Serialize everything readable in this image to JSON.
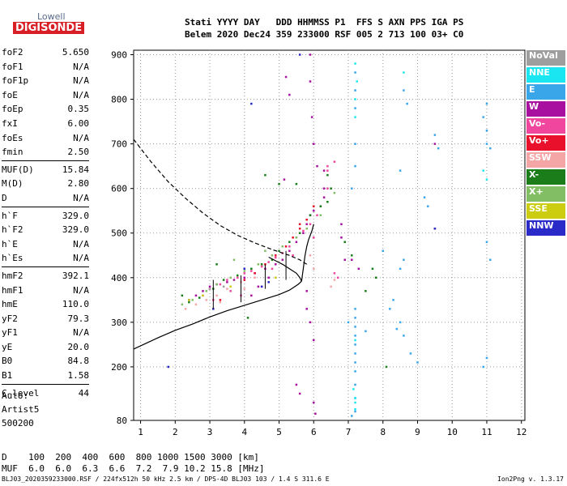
{
  "logo": {
    "top": "Lowell",
    "bottom": "DIGISONDE"
  },
  "header": {
    "line1": "Stati YYYY DAY   DDD HHMMSS P1  FFS S AXN PPS IGA PS",
    "line2": "Belem 2020 Dec24 359 233000 RSF 005 2 713 100 03+ C0"
  },
  "params": [
    {
      "name": "foF2",
      "value": "5.650"
    },
    {
      "name": "foF1",
      "value": "N/A"
    },
    {
      "name": "foF1p",
      "value": "N/A"
    },
    {
      "name": "foE",
      "value": "N/A"
    },
    {
      "name": "foEp",
      "value": "0.35"
    },
    {
      "name": "fxI",
      "value": "6.00"
    },
    {
      "name": "foEs",
      "value": "N/A"
    },
    {
      "name": "fmin",
      "value": "2.50"
    },
    {
      "sep": true
    },
    {
      "name": "MUF(D)",
      "value": "15.84"
    },
    {
      "name": "M(D)",
      "value": "2.80"
    },
    {
      "name": "D",
      "value": "N/A"
    },
    {
      "sep": true
    },
    {
      "name": "h`F",
      "value": "329.0"
    },
    {
      "name": "h`F2",
      "value": "329.0"
    },
    {
      "name": "h`E",
      "value": "N/A"
    },
    {
      "name": "h`Es",
      "value": "N/A"
    },
    {
      "sep": true
    },
    {
      "name": "hmF2",
      "value": "392.1"
    },
    {
      "name": "hmF1",
      "value": "N/A"
    },
    {
      "name": "hmE",
      "value": "110.0"
    },
    {
      "name": "yF2",
      "value": "79.3"
    },
    {
      "name": "yF1",
      "value": "N/A"
    },
    {
      "name": "yE",
      "value": "20.0"
    },
    {
      "name": "B0",
      "value": "84.8"
    },
    {
      "name": "B1",
      "value": "1.58"
    },
    {
      "sep": true
    },
    {
      "name": "C-level",
      "value": "44"
    }
  ],
  "auto": {
    "line1": "Auto:",
    "line2": "Artist5",
    "line3": "500200"
  },
  "bottom": {
    "d_line": "D    100  200  400  600  800 1000 1500 3000 [km]",
    "muf_line": "MUF  6.0  6.0  6.3  6.6  7.2  7.9 10.2 15.8 [MHz]"
  },
  "footer": "BLJ03_2020359233000.RSF / 224fx512h 50 kHz 2.5 km / DPS-4D BLJ03 103 / 1.4 S 311.6 E",
  "version": "Ion2Png v. 1.3.17",
  "legend": [
    {
      "label": "NoVal",
      "bg": "#9e9e9e",
      "fg": "#ffffff"
    },
    {
      "label": "NNE",
      "bg": "#19e6f0",
      "fg": "#ffffff"
    },
    {
      "label": "E",
      "bg": "#3aa6ea",
      "fg": "#ffffff"
    },
    {
      "label": "W",
      "bg": "#a8119f",
      "fg": "#ffffff"
    },
    {
      "label": "Vo-",
      "bg": "#f0469e",
      "fg": "#ffffff"
    },
    {
      "label": "Vo+",
      "bg": "#e8102a",
      "fg": "#ffffff"
    },
    {
      "label": "SSW",
      "bg": "#f4a6a6",
      "fg": "#ffffff"
    },
    {
      "label": "X-",
      "bg": "#1a7d1a",
      "fg": "#ffffff"
    },
    {
      "label": "X+",
      "bg": "#82bf64",
      "fg": "#ffffff"
    },
    {
      "label": "SSE",
      "bg": "#cccc10",
      "fg": "#ffffff"
    },
    {
      "label": "NNW",
      "bg": "#2a2ac8",
      "fg": "#ffffff"
    }
  ],
  "chart_data": {
    "type": "scatter",
    "xlim": [
      0.8,
      12.1
    ],
    "ylim": [
      80,
      910
    ],
    "x_ticks": [
      1,
      2,
      3,
      4,
      5,
      6,
      7,
      8,
      9,
      10,
      11,
      12
    ],
    "y_ticks": [
      80,
      200,
      300,
      400,
      500,
      600,
      700,
      800,
      900
    ],
    "grid": "dotted",
    "traces": [
      {
        "name": "W",
        "color": "#a8119f",
        "points": [
          [
            5.9,
            900
          ],
          [
            5.9,
            840
          ],
          [
            5.95,
            760
          ],
          [
            6.0,
            700
          ],
          [
            6.1,
            650
          ],
          [
            6.3,
            640
          ],
          [
            6.3,
            600
          ],
          [
            6.3,
            580
          ],
          [
            6.2,
            560
          ],
          [
            6.0,
            550
          ],
          [
            5.9,
            540
          ],
          [
            5.8,
            520
          ],
          [
            5.7,
            500
          ],
          [
            5.5,
            480
          ],
          [
            5.3,
            460
          ],
          [
            5.1,
            440
          ],
          [
            4.9,
            430
          ],
          [
            4.6,
            420
          ],
          [
            4.3,
            410
          ],
          [
            4.0,
            400
          ],
          [
            3.7,
            395
          ],
          [
            3.5,
            390
          ],
          [
            3.2,
            385
          ],
          [
            3.0,
            380
          ],
          [
            2.8,
            370
          ],
          [
            2.6,
            360
          ],
          [
            2.4,
            350
          ],
          [
            5.8,
            370
          ],
          [
            5.8,
            330
          ],
          [
            5.9,
            300
          ],
          [
            6.0,
            260
          ],
          [
            6.0,
            120
          ],
          [
            6.05,
            95
          ],
          [
            6.8,
            520
          ],
          [
            6.8,
            490
          ],
          [
            6.9,
            440
          ],
          [
            7.1,
            440
          ],
          [
            7.3,
            420
          ],
          [
            5.2,
            850
          ],
          [
            5.3,
            810
          ],
          [
            5.15,
            620
          ],
          [
            5.5,
            160
          ],
          [
            5.6,
            140
          ],
          [
            4.2,
            360
          ],
          [
            4.4,
            380
          ],
          [
            4.7,
            400
          ],
          [
            9.5,
            510
          ],
          [
            9.5,
            700
          ]
        ]
      },
      {
        "name": "Vo-",
        "color": "#f0469e",
        "points": [
          [
            6.2,
            560
          ],
          [
            6.1,
            540
          ],
          [
            5.9,
            520
          ],
          [
            5.7,
            505
          ],
          [
            5.5,
            490
          ],
          [
            5.3,
            470
          ],
          [
            5.1,
            455
          ],
          [
            4.9,
            445
          ],
          [
            4.7,
            435
          ],
          [
            4.5,
            425
          ],
          [
            4.2,
            415
          ],
          [
            4.0,
            410
          ],
          [
            3.8,
            400
          ],
          [
            3.5,
            395
          ],
          [
            3.3,
            385
          ],
          [
            3.0,
            375
          ],
          [
            2.8,
            360
          ],
          [
            6.4,
            600
          ],
          [
            6.4,
            650
          ],
          [
            6.4,
            640
          ],
          [
            6.0,
            490
          ],
          [
            5.4,
            450
          ],
          [
            6.6,
            410
          ],
          [
            6.7,
            400
          ],
          [
            6.6,
            660
          ],
          [
            4.5,
            380
          ],
          [
            4.8,
            420
          ],
          [
            3.6,
            370
          ],
          [
            3.1,
            350
          ],
          [
            3.9,
            360
          ]
        ]
      },
      {
        "name": "Vo+",
        "color": "#e8102a",
        "points": [
          [
            6.0,
            560
          ],
          [
            5.8,
            530
          ],
          [
            5.6,
            510
          ],
          [
            5.4,
            490
          ],
          [
            5.2,
            470
          ],
          [
            4.9,
            450
          ],
          [
            4.6,
            430
          ],
          [
            4.3,
            410
          ],
          [
            4.0,
            395
          ],
          [
            5.6,
            520
          ],
          [
            3.3,
            350
          ]
        ]
      },
      {
        "name": "X-",
        "color": "#1a7d1a",
        "points": [
          [
            6.4,
            630
          ],
          [
            6.5,
            600
          ],
          [
            6.4,
            570
          ],
          [
            5.9,
            540
          ],
          [
            5.6,
            500
          ],
          [
            5.3,
            480
          ],
          [
            5.0,
            460
          ],
          [
            4.8,
            440
          ],
          [
            4.5,
            430
          ],
          [
            4.2,
            420
          ],
          [
            3.8,
            405
          ],
          [
            3.4,
            395
          ],
          [
            3.1,
            375
          ],
          [
            2.7,
            355
          ],
          [
            2.4,
            345
          ],
          [
            6.9,
            480
          ],
          [
            7.1,
            450
          ],
          [
            7.7,
            420
          ],
          [
            7.8,
            400
          ],
          [
            7.5,
            370
          ],
          [
            6.2,
            560
          ],
          [
            5.5,
            610
          ],
          [
            4.6,
            630
          ],
          [
            3.2,
            430
          ],
          [
            2.2,
            360
          ],
          [
            8.1,
            200
          ],
          [
            4.1,
            310
          ],
          [
            5.0,
            610
          ]
        ]
      },
      {
        "name": "X+",
        "color": "#82bf64",
        "points": [
          [
            6.6,
            590
          ],
          [
            6.2,
            540
          ],
          [
            5.8,
            510
          ],
          [
            5.5,
            490
          ],
          [
            5.1,
            470
          ],
          [
            4.8,
            450
          ],
          [
            4.4,
            430
          ],
          [
            4.0,
            415
          ],
          [
            3.6,
            400
          ],
          [
            3.2,
            385
          ],
          [
            2.9,
            370
          ],
          [
            2.5,
            350
          ],
          [
            2.2,
            340
          ],
          [
            3.7,
            440
          ],
          [
            4.6,
            460
          ]
        ]
      },
      {
        "name": "SSW",
        "color": "#f4a6a6",
        "points": [
          [
            4.3,
            400
          ],
          [
            3.9,
            390
          ],
          [
            3.5,
            375
          ],
          [
            3.2,
            360
          ],
          [
            2.9,
            350
          ],
          [
            2.6,
            340
          ],
          [
            2.3,
            330
          ],
          [
            5.9,
            450
          ],
          [
            6.0,
            420
          ],
          [
            6.5,
            380
          ],
          [
            6.6,
            395
          ],
          [
            4.0,
            375
          ],
          [
            3.3,
            345
          ]
        ]
      },
      {
        "name": "E",
        "color": "#3aa6ea",
        "points": [
          [
            7.2,
            860
          ],
          [
            7.2,
            820
          ],
          [
            7.2,
            780
          ],
          [
            7.2,
            700
          ],
          [
            7.2,
            650
          ],
          [
            7.1,
            600
          ],
          [
            7.2,
            330
          ],
          [
            7.2,
            310
          ],
          [
            7.2,
            290
          ],
          [
            7.2,
            270
          ],
          [
            7.2,
            250
          ],
          [
            7.2,
            230
          ],
          [
            7.2,
            210
          ],
          [
            7.2,
            190
          ],
          [
            7.2,
            160
          ],
          [
            7.2,
            130
          ],
          [
            7.2,
            100
          ],
          [
            7.1,
            90
          ],
          [
            8.6,
            820
          ],
          [
            8.7,
            790
          ],
          [
            8.5,
            640
          ],
          [
            8.5,
            420
          ],
          [
            8.3,
            350
          ],
          [
            8.2,
            330
          ],
          [
            8.5,
            300
          ],
          [
            8.4,
            285
          ],
          [
            8.6,
            270
          ],
          [
            9.5,
            720
          ],
          [
            9.6,
            690
          ],
          [
            11.0,
            790
          ],
          [
            10.9,
            760
          ],
          [
            11.0,
            730
          ],
          [
            11.0,
            700
          ],
          [
            11.1,
            690
          ],
          [
            11.0,
            480
          ],
          [
            11.1,
            440
          ],
          [
            11.0,
            220
          ],
          [
            10.9,
            200
          ],
          [
            8.8,
            230
          ],
          [
            9.0,
            210
          ],
          [
            9.2,
            580
          ],
          [
            9.3,
            560
          ],
          [
            7.0,
            300
          ],
          [
            8.0,
            460
          ],
          [
            8.6,
            440
          ],
          [
            7.5,
            280
          ]
        ]
      },
      {
        "name": "NNE",
        "color": "#19e6f0",
        "points": [
          [
            7.2,
            880
          ],
          [
            7.25,
            840
          ],
          [
            7.2,
            800
          ],
          [
            7.2,
            760
          ],
          [
            8.6,
            860
          ],
          [
            10.9,
            640
          ],
          [
            11.0,
            620
          ],
          [
            7.2,
            260
          ],
          [
            7.15,
            150
          ],
          [
            7.2,
            130
          ],
          [
            7.2,
            120
          ],
          [
            7.2,
            105
          ]
        ]
      },
      {
        "name": "NNW",
        "color": "#2a2ac8",
        "points": [
          [
            4.5,
            380
          ],
          [
            4.7,
            390
          ],
          [
            4.0,
            420
          ],
          [
            4.2,
            790
          ],
          [
            9.5,
            510
          ],
          [
            1.8,
            200
          ],
          [
            5.6,
            900
          ],
          [
            3.1,
            330
          ]
        ]
      },
      {
        "name": "SSE",
        "color": "#cccc10",
        "points": [
          [
            2.4,
            350
          ],
          [
            2.8,
            360
          ],
          [
            3.6,
            380
          ],
          [
            4.9,
            400
          ]
        ]
      },
      {
        "name": "NoVal",
        "color": "#9e9e9e",
        "points": [
          [
            3.0,
            375
          ],
          [
            3.4,
            380
          ]
        ]
      }
    ],
    "virtual_height_trace": {
      "style": "solid",
      "points": [
        [
          0.8,
          240
        ],
        [
          1.5,
          265
        ],
        [
          2.0,
          282
        ],
        [
          2.5,
          296
        ],
        [
          3.0,
          312
        ],
        [
          3.5,
          326
        ],
        [
          4.0,
          338
        ],
        [
          4.5,
          350
        ],
        [
          5.0,
          362
        ],
        [
          5.3,
          372
        ],
        [
          5.55,
          385
        ],
        [
          5.65,
          392
        ]
      ]
    },
    "profile_lower": {
      "style": "solid",
      "points": [
        [
          5.65,
          392
        ],
        [
          5.6,
          400
        ],
        [
          5.5,
          410
        ],
        [
          5.3,
          420
        ],
        [
          5.1,
          430
        ],
        [
          4.9,
          438
        ],
        [
          4.7,
          446
        ]
      ]
    },
    "profile_upper": {
      "style": "solid",
      "points": [
        [
          5.65,
          392
        ],
        [
          5.7,
          420
        ],
        [
          5.75,
          450
        ],
        [
          5.8,
          470
        ],
        [
          5.85,
          485
        ],
        [
          5.9,
          495
        ],
        [
          5.95,
          505
        ],
        [
          6.0,
          520
        ]
      ]
    },
    "profile_bottom_dashed": {
      "style": "dashed",
      "points": [
        [
          0.8,
          710
        ],
        [
          1.3,
          660
        ],
        [
          1.8,
          615
        ],
        [
          2.3,
          578
        ],
        [
          2.8,
          545
        ],
        [
          3.3,
          517
        ],
        [
          3.8,
          495
        ],
        [
          4.3,
          478
        ],
        [
          4.8,
          463
        ],
        [
          5.3,
          450
        ],
        [
          5.6,
          440
        ],
        [
          5.8,
          430
        ]
      ]
    },
    "hf2_marks": [
      {
        "x": 3.1,
        "y_from": 330,
        "y_to": 395
      },
      {
        "x": 3.9,
        "y_from": 345,
        "y_to": 405
      },
      {
        "x": 4.6,
        "y_from": 375,
        "y_to": 430
      },
      {
        "x": 5.2,
        "y_from": 395,
        "y_to": 460
      }
    ]
  }
}
